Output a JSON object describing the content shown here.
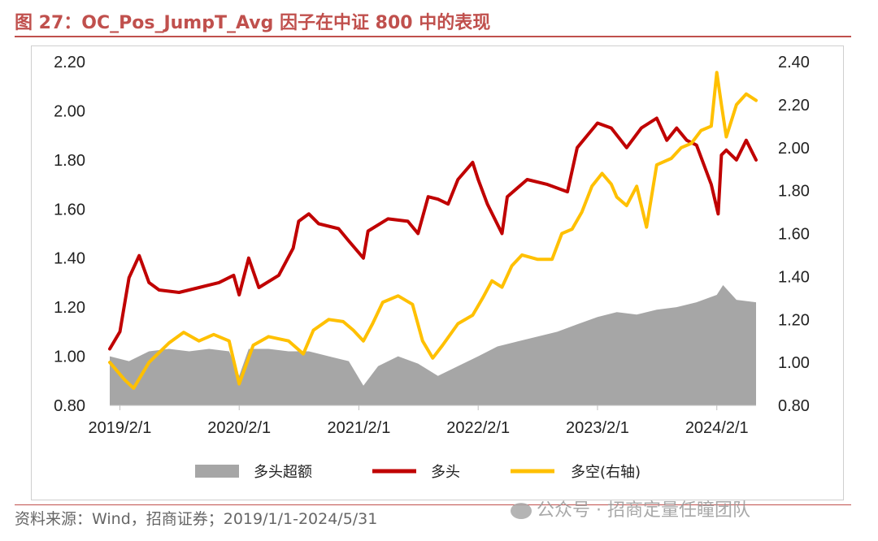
{
  "figure": {
    "title": "图 27：OC_Pos_JumpT_Avg 因子在中证 800 中的表现",
    "source": "资料来源：Wind，招商证券；2019/1/1-2024/5/31",
    "watermark": "公众号 · 招商定量任瞳团队"
  },
  "colors": {
    "title": "#c0504d",
    "excess": "#a6a6a6",
    "long": "#c00000",
    "longshort": "#ffc000"
  },
  "chart_data": {
    "type": "line",
    "x_ticks": [
      "2019/2/1",
      "2020/2/1",
      "2021/2/1",
      "2022/2/1",
      "2023/2/1",
      "2024/2/1"
    ],
    "x_range": [
      "2019/1/1",
      "2024/5/31"
    ],
    "y_left": {
      "range": [
        0.8,
        2.2
      ],
      "ticks": [
        "0.80",
        "1.00",
        "1.20",
        "1.40",
        "1.60",
        "1.80",
        "2.00",
        "2.20"
      ]
    },
    "y_right": {
      "range": [
        0.8,
        2.4
      ],
      "ticks": [
        "0.80",
        "1.00",
        "1.20",
        "1.40",
        "1.60",
        "1.80",
        "2.00",
        "2.20",
        "2.40"
      ]
    },
    "legend_position": "bottom",
    "series": [
      {
        "name": "多头超额",
        "kind": "area",
        "axis": "left",
        "points": [
          [
            "2019-01-01",
            1.0
          ],
          [
            "2019-03-01",
            0.98
          ],
          [
            "2019-05-01",
            1.02
          ],
          [
            "2019-07-01",
            1.03
          ],
          [
            "2019-09-01",
            1.02
          ],
          [
            "2019-11-01",
            1.03
          ],
          [
            "2020-01-01",
            1.02
          ],
          [
            "2020-02-01",
            0.92
          ],
          [
            "2020-03-01",
            1.03
          ],
          [
            "2020-05-01",
            1.03
          ],
          [
            "2020-07-01",
            1.02
          ],
          [
            "2020-09-01",
            1.02
          ],
          [
            "2020-11-01",
            1.0
          ],
          [
            "2021-01-01",
            0.98
          ],
          [
            "2021-02-15",
            0.88
          ],
          [
            "2021-04-01",
            0.96
          ],
          [
            "2021-06-01",
            1.0
          ],
          [
            "2021-08-01",
            0.97
          ],
          [
            "2021-10-01",
            0.92
          ],
          [
            "2021-12-01",
            0.96
          ],
          [
            "2022-02-01",
            1.0
          ],
          [
            "2022-04-01",
            1.04
          ],
          [
            "2022-06-01",
            1.06
          ],
          [
            "2022-08-01",
            1.08
          ],
          [
            "2022-10-01",
            1.1
          ],
          [
            "2022-12-01",
            1.13
          ],
          [
            "2023-02-01",
            1.16
          ],
          [
            "2023-04-01",
            1.18
          ],
          [
            "2023-06-01",
            1.17
          ],
          [
            "2023-08-01",
            1.19
          ],
          [
            "2023-10-01",
            1.2
          ],
          [
            "2023-12-01",
            1.22
          ],
          [
            "2024-02-01",
            1.25
          ],
          [
            "2024-02-20",
            1.29
          ],
          [
            "2024-04-01",
            1.23
          ],
          [
            "2024-05-31",
            1.22
          ]
        ]
      },
      {
        "name": "多头",
        "kind": "line",
        "axis": "left",
        "points": [
          [
            "2019-01-01",
            1.03
          ],
          [
            "2019-02-01",
            1.1
          ],
          [
            "2019-03-01",
            1.32
          ],
          [
            "2019-04-01",
            1.41
          ],
          [
            "2019-05-01",
            1.3
          ],
          [
            "2019-06-01",
            1.27
          ],
          [
            "2019-08-01",
            1.26
          ],
          [
            "2019-10-01",
            1.28
          ],
          [
            "2019-12-01",
            1.3
          ],
          [
            "2020-01-15",
            1.33
          ],
          [
            "2020-02-01",
            1.25
          ],
          [
            "2020-03-01",
            1.4
          ],
          [
            "2020-04-01",
            1.28
          ],
          [
            "2020-06-01",
            1.33
          ],
          [
            "2020-07-15",
            1.44
          ],
          [
            "2020-08-01",
            1.55
          ],
          [
            "2020-09-01",
            1.58
          ],
          [
            "2020-10-01",
            1.54
          ],
          [
            "2020-12-01",
            1.52
          ],
          [
            "2021-01-01",
            1.47
          ],
          [
            "2021-02-15",
            1.4
          ],
          [
            "2021-03-01",
            1.51
          ],
          [
            "2021-05-01",
            1.56
          ],
          [
            "2021-07-01",
            1.55
          ],
          [
            "2021-08-01",
            1.5
          ],
          [
            "2021-09-01",
            1.65
          ],
          [
            "2021-10-01",
            1.64
          ],
          [
            "2021-11-01",
            1.62
          ],
          [
            "2021-12-01",
            1.72
          ],
          [
            "2022-01-15",
            1.79
          ],
          [
            "2022-02-01",
            1.72
          ],
          [
            "2022-03-01",
            1.62
          ],
          [
            "2022-04-15",
            1.5
          ],
          [
            "2022-05-01",
            1.65
          ],
          [
            "2022-07-01",
            1.72
          ],
          [
            "2022-09-01",
            1.7
          ],
          [
            "2022-11-01",
            1.67
          ],
          [
            "2022-12-01",
            1.85
          ],
          [
            "2023-01-01",
            1.9
          ],
          [
            "2023-02-01",
            1.95
          ],
          [
            "2023-03-15",
            1.93
          ],
          [
            "2023-05-01",
            1.85
          ],
          [
            "2023-06-15",
            1.93
          ],
          [
            "2023-08-01",
            1.97
          ],
          [
            "2023-09-01",
            1.88
          ],
          [
            "2023-10-01",
            1.93
          ],
          [
            "2023-11-01",
            1.88
          ],
          [
            "2023-12-01",
            1.86
          ],
          [
            "2024-01-15",
            1.7
          ],
          [
            "2024-02-05",
            1.58
          ],
          [
            "2024-02-15",
            1.82
          ],
          [
            "2024-03-01",
            1.84
          ],
          [
            "2024-04-01",
            1.8
          ],
          [
            "2024-05-01",
            1.88
          ],
          [
            "2024-05-31",
            1.8
          ]
        ]
      },
      {
        "name": "多空(右轴)",
        "kind": "line",
        "axis": "right",
        "points": [
          [
            "2019-01-01",
            1.0
          ],
          [
            "2019-02-15",
            0.92
          ],
          [
            "2019-03-15",
            0.88
          ],
          [
            "2019-05-01",
            1.0
          ],
          [
            "2019-07-01",
            1.09
          ],
          [
            "2019-08-15",
            1.14
          ],
          [
            "2019-10-01",
            1.1
          ],
          [
            "2019-11-15",
            1.13
          ],
          [
            "2020-01-01",
            1.1
          ],
          [
            "2020-02-01",
            0.9
          ],
          [
            "2020-03-15",
            1.08
          ],
          [
            "2020-05-01",
            1.12
          ],
          [
            "2020-07-01",
            1.1
          ],
          [
            "2020-08-15",
            1.04
          ],
          [
            "2020-09-15",
            1.15
          ],
          [
            "2020-11-01",
            1.2
          ],
          [
            "2020-12-15",
            1.19
          ],
          [
            "2021-01-15",
            1.15
          ],
          [
            "2021-02-15",
            1.1
          ],
          [
            "2021-03-15",
            1.18
          ],
          [
            "2021-04-15",
            1.28
          ],
          [
            "2021-06-01",
            1.31
          ],
          [
            "2021-07-15",
            1.27
          ],
          [
            "2021-08-15",
            1.1
          ],
          [
            "2021-09-15",
            1.02
          ],
          [
            "2021-10-15",
            1.08
          ],
          [
            "2021-12-01",
            1.18
          ],
          [
            "2022-01-15",
            1.22
          ],
          [
            "2022-02-15",
            1.3
          ],
          [
            "2022-03-15",
            1.38
          ],
          [
            "2022-04-15",
            1.35
          ],
          [
            "2022-05-15",
            1.45
          ],
          [
            "2022-06-15",
            1.5
          ],
          [
            "2022-08-01",
            1.48
          ],
          [
            "2022-09-15",
            1.48
          ],
          [
            "2022-10-15",
            1.6
          ],
          [
            "2022-11-15",
            1.62
          ],
          [
            "2022-12-15",
            1.7
          ],
          [
            "2023-01-15",
            1.82
          ],
          [
            "2023-02-15",
            1.88
          ],
          [
            "2023-03-15",
            1.83
          ],
          [
            "2023-04-01",
            1.77
          ],
          [
            "2023-05-01",
            1.73
          ],
          [
            "2023-06-01",
            1.82
          ],
          [
            "2023-07-01",
            1.63
          ],
          [
            "2023-08-01",
            1.92
          ],
          [
            "2023-09-15",
            1.95
          ],
          [
            "2023-10-15",
            2.0
          ],
          [
            "2023-11-15",
            2.02
          ],
          [
            "2023-12-15",
            2.08
          ],
          [
            "2024-01-15",
            2.1
          ],
          [
            "2024-02-01",
            2.35
          ],
          [
            "2024-02-15",
            2.2
          ],
          [
            "2024-03-01",
            2.05
          ],
          [
            "2024-04-01",
            2.2
          ],
          [
            "2024-05-01",
            2.25
          ],
          [
            "2024-05-31",
            2.22
          ]
        ]
      }
    ]
  }
}
